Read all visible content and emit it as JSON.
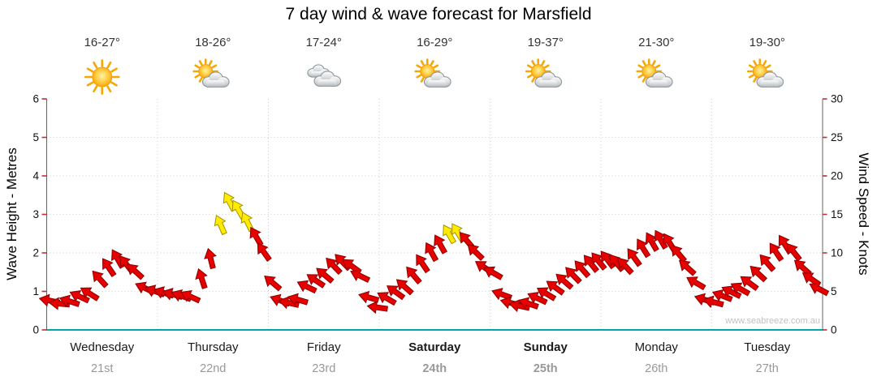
{
  "title": "7 day wind & wave forecast for Marsfield",
  "watermark": "www.seabreeze.com.au",
  "days": [
    {
      "name": "Wednesday",
      "date": "21st",
      "temp": "16-27°",
      "icon": "sunny",
      "bold": false
    },
    {
      "name": "Thursday",
      "date": "22nd",
      "temp": "18-26°",
      "icon": "partly-cloudy",
      "bold": false
    },
    {
      "name": "Friday",
      "date": "23rd",
      "temp": "17-24°",
      "icon": "cloudy",
      "bold": false
    },
    {
      "name": "Saturday",
      "date": "24th",
      "temp": "16-29°",
      "icon": "partly-cloudy",
      "bold": true
    },
    {
      "name": "Sunday",
      "date": "25th",
      "temp": "19-37°",
      "icon": "partly-cloudy",
      "bold": true
    },
    {
      "name": "Monday",
      "date": "26th",
      "temp": "21-30°",
      "icon": "partly-cloudy",
      "bold": false
    },
    {
      "name": "Tuesday",
      "date": "27th",
      "temp": "19-30°",
      "icon": "partly-cloudy",
      "bold": false
    }
  ],
  "chart_data": {
    "type": "wind-arrow-series",
    "title": "7 day wind & wave forecast for Marsfield",
    "y_left": {
      "label": "Wave Height - Metres",
      "min": 0,
      "max": 6,
      "ticks": [
        0,
        1,
        2,
        3,
        4,
        5,
        6
      ]
    },
    "y_right": {
      "label": "Wind Speed - Knots",
      "min": 0,
      "max": 30,
      "ticks": [
        0,
        5,
        10,
        15,
        20,
        25,
        30
      ]
    },
    "x_axis": {
      "categories": [
        "Wednesday",
        "Thursday",
        "Friday",
        "Saturday",
        "Sunday",
        "Monday",
        "Tuesday"
      ],
      "dates": [
        "21st",
        "22nd",
        "23rd",
        "24th",
        "25th",
        "26th",
        "27th"
      ]
    },
    "grid": true,
    "legend": "none",
    "arrow_colors": {
      "red": "#e60000",
      "yellow": "#ffec00"
    },
    "axis_color": "#00a7a7",
    "points_format": "[day_offset_0to7, wind_speed_knots, arrow_direction_deg, optional 'y'=yellow]",
    "points": [
      [
        0.03,
        3.8,
        192
      ],
      [
        0.12,
        3.4,
        185
      ],
      [
        0.21,
        3.7,
        198
      ],
      [
        0.3,
        4.3,
        205
      ],
      [
        0.39,
        4.7,
        212
      ],
      [
        0.48,
        6.6,
        228
      ],
      [
        0.56,
        8.1,
        236
      ],
      [
        0.64,
        9.2,
        240
      ],
      [
        0.72,
        8.5,
        232
      ],
      [
        0.8,
        7.6,
        222
      ],
      [
        0.89,
        5.4,
        205
      ],
      [
        0.98,
        5,
        200
      ],
      [
        1.06,
        4.8,
        198
      ],
      [
        1.14,
        4.6,
        196
      ],
      [
        1.22,
        4.4,
        200
      ],
      [
        1.3,
        4.3,
        205
      ],
      [
        1.4,
        6.6,
        252
      ],
      [
        1.48,
        9.2,
        256
      ],
      [
        1.57,
        13.6,
        246,
        "y"
      ],
      [
        1.65,
        16.6,
        242,
        "y"
      ],
      [
        1.73,
        15.6,
        240,
        "y"
      ],
      [
        1.81,
        14,
        244,
        "y"
      ],
      [
        1.89,
        12.1,
        240
      ],
      [
        1.96,
        10.1,
        235
      ],
      [
        2.04,
        6.1,
        220
      ],
      [
        2.11,
        3.8,
        200
      ],
      [
        2.19,
        3.5,
        193
      ],
      [
        2.27,
        3.9,
        196
      ],
      [
        2.35,
        5.6,
        206
      ],
      [
        2.43,
        6.4,
        214
      ],
      [
        2.51,
        7.1,
        220
      ],
      [
        2.59,
        8.3,
        226
      ],
      [
        2.67,
        8.8,
        226
      ],
      [
        2.75,
        8.3,
        216
      ],
      [
        2.83,
        7,
        206
      ],
      [
        2.91,
        4.2,
        196
      ],
      [
        2.99,
        2.9,
        188
      ],
      [
        3.07,
        4.1,
        210
      ],
      [
        3.15,
        4.9,
        216
      ],
      [
        3.23,
        5.6,
        222
      ],
      [
        3.31,
        7.1,
        230
      ],
      [
        3.39,
        8.6,
        236
      ],
      [
        3.47,
        10.1,
        241
      ],
      [
        3.55,
        11.1,
        241
      ],
      [
        3.63,
        12.4,
        240,
        "y"
      ],
      [
        3.71,
        12.6,
        238,
        "y"
      ],
      [
        3.79,
        11.6,
        230
      ],
      [
        3.87,
        10.1,
        224
      ],
      [
        3.95,
        8.1,
        214
      ],
      [
        4.03,
        7.4,
        210
      ],
      [
        4.11,
        4.6,
        200
      ],
      [
        4.19,
        3.5,
        194
      ],
      [
        4.27,
        3.1,
        192
      ],
      [
        4.35,
        3.4,
        199
      ],
      [
        4.43,
        4.1,
        205
      ],
      [
        4.51,
        4.7,
        211
      ],
      [
        4.59,
        5.5,
        216
      ],
      [
        4.67,
        6.3,
        221
      ],
      [
        4.75,
        7.1,
        226
      ],
      [
        4.83,
        7.9,
        229
      ],
      [
        4.91,
        8.6,
        231
      ],
      [
        4.98,
        8.9,
        231
      ],
      [
        5.06,
        9.1,
        233
      ],
      [
        5.14,
        8.7,
        230
      ],
      [
        5.22,
        8.3,
        228
      ],
      [
        5.3,
        9.4,
        234
      ],
      [
        5.38,
        10.6,
        238
      ],
      [
        5.46,
        11.4,
        240
      ],
      [
        5.54,
        11.7,
        240
      ],
      [
        5.62,
        11.3,
        238
      ],
      [
        5.7,
        9.9,
        230
      ],
      [
        5.78,
        8.1,
        222
      ],
      [
        5.86,
        6.1,
        210
      ],
      [
        5.94,
        3.9,
        198
      ],
      [
        6.02,
        3.6,
        195
      ],
      [
        6.1,
        4.4,
        201
      ],
      [
        6.18,
        4.9,
        206
      ],
      [
        6.26,
        5.3,
        209
      ],
      [
        6.34,
        6.1,
        216
      ],
      [
        6.42,
        7.3,
        223
      ],
      [
        6.5,
        8.7,
        229
      ],
      [
        6.58,
        10.1,
        236
      ],
      [
        6.66,
        11.1,
        238
      ],
      [
        6.74,
        10.1,
        232
      ],
      [
        6.82,
        8.1,
        222
      ],
      [
        6.9,
        6.6,
        215
      ],
      [
        6.97,
        5.3,
        208
      ]
    ]
  }
}
